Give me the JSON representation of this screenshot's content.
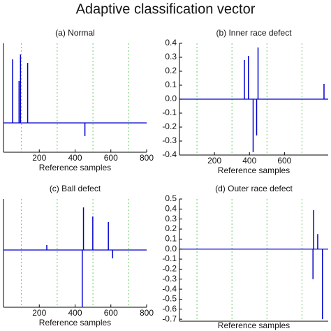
{
  "title": "Adaptive classification vector",
  "chart_data": [
    {
      "type": "stem",
      "title": "(a) Normal",
      "x_label": "Reference samples",
      "color": "#0000cc",
      "grid_color": "#66cc66",
      "x": [
        51,
        87,
        95,
        135,
        455
      ],
      "values": [
        0.455,
        0.3,
        0.49,
        0.43,
        -0.095
      ],
      "xlim": [
        0,
        800
      ],
      "xticks": [
        200,
        400,
        600,
        800
      ],
      "xgrid": [
        100,
        300,
        500,
        700
      ],
      "ylim": [
        -0.21,
        0.57
      ]
    },
    {
      "type": "stem",
      "title": "(b) Inner race defect",
      "x_label": "Reference samples",
      "color": "#0000cc",
      "grid_color": "#66cc66",
      "x": [
        371,
        394,
        421,
        441,
        449,
        826
      ],
      "values": [
        0.28,
        0.31,
        -0.38,
        -0.26,
        0.37,
        0.11
      ],
      "xlim": [
        0,
        850
      ],
      "xticks": [
        200,
        400,
        600
      ],
      "xgrid": [
        100,
        300,
        500,
        700
      ],
      "ylim": [
        -0.4,
        0.4
      ],
      "yticks": [
        0.4,
        0.3,
        0.2,
        0.1,
        {
          "value": 0,
          "label": "0.0"
        },
        -0.1,
        -0.2,
        -0.3,
        -0.4
      ]
    },
    {
      "type": "stem",
      "title": "(c) Ball defect",
      "x_label": "Reference samples",
      "color": "#0000cc",
      "grid_color": "#66cc66",
      "x": [
        242,
        440,
        447,
        499,
        586,
        610
      ],
      "values": [
        0.035,
        -0.41,
        0.305,
        0.24,
        0.2,
        -0.06
      ],
      "xlim": [
        0,
        800
      ],
      "xticks": [
        200,
        400,
        600,
        800
      ],
      "xgrid": [
        100,
        300,
        500,
        700
      ],
      "ylim": [
        -0.41,
        0.365
      ]
    },
    {
      "type": "stem",
      "title": "(d) Outer race defect",
      "x_label": "Reference samples",
      "color": "#0000cc",
      "grid_color": "#66cc66",
      "x": [
        763,
        767,
        790,
        817
      ],
      "values": [
        -0.3,
        0.39,
        0.15,
        -0.7
      ],
      "xlim": [
        0,
        850
      ],
      "xgrid": [
        100,
        300,
        500,
        700
      ],
      "ylim": [
        -0.72,
        0.5
      ],
      "yticks": [
        0.5,
        0.4,
        0.3,
        0.2,
        0.1,
        {
          "value": 0,
          "label": "0.0"
        },
        -0.1,
        -0.2,
        -0.3,
        -0.4,
        -0.5,
        -0.6,
        -0.7
      ]
    }
  ]
}
